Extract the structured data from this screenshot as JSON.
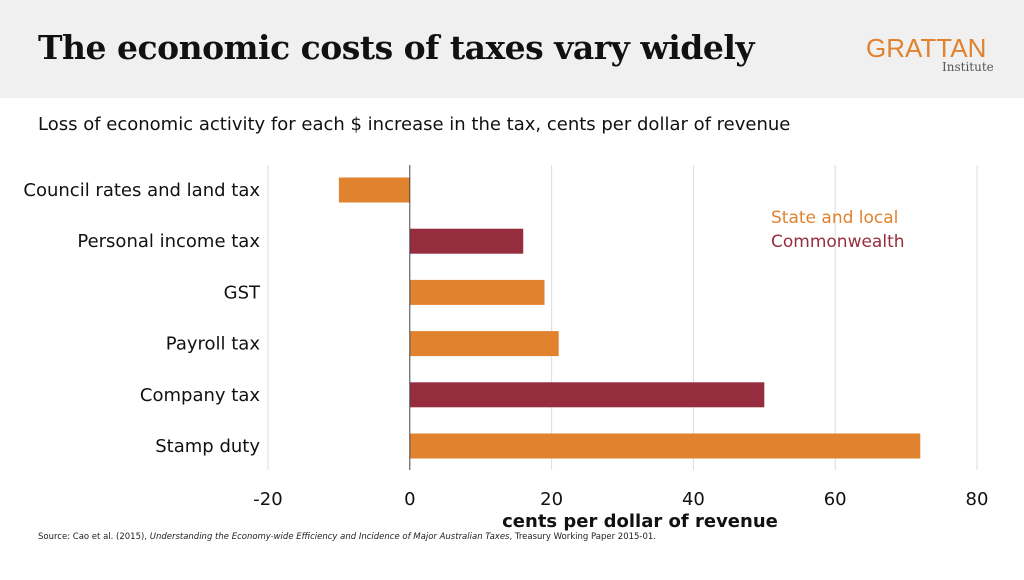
{
  "header": {
    "title": "The economic costs of taxes vary widely",
    "logo": "GRATTAN",
    "logo_sub": "Institute"
  },
  "source": {
    "prefix": "Source: Cao et al. (2015), ",
    "title": "Understanding the Economy-wide Efficiency and Incidence of Major Australian Taxes",
    "suffix": ", Treasury Working Paper 2015-01."
  },
  "colors": {
    "state": "#e0822e",
    "commonwealth": "#952d3e"
  },
  "chart_data": {
    "type": "bar",
    "orientation": "horizontal",
    "title": "Loss of economic activity for each $ increase in the tax, cents per dollar of revenue",
    "xlabel": "cents per dollar of revenue",
    "ylabel": "",
    "xlim": [
      -20,
      80
    ],
    "xticks": [
      "-20",
      "0",
      "20",
      "40",
      "60",
      "80"
    ],
    "xtick_values": [
      -20,
      0,
      20,
      40,
      60,
      80
    ],
    "grid": true,
    "categories": [
      "Council rates and land tax",
      "Personal income tax",
      "GST",
      "Payroll tax",
      "Company tax",
      "Stamp duty"
    ],
    "values": [
      -10,
      16,
      19,
      21,
      50,
      72
    ],
    "groups": [
      "state",
      "commonwealth",
      "state",
      "state",
      "commonwealth",
      "state"
    ],
    "legend": [
      {
        "key": "state",
        "label": "State and local"
      },
      {
        "key": "commonwealth",
        "label": "Commonwealth"
      }
    ],
    "legend_position": "top-right"
  }
}
